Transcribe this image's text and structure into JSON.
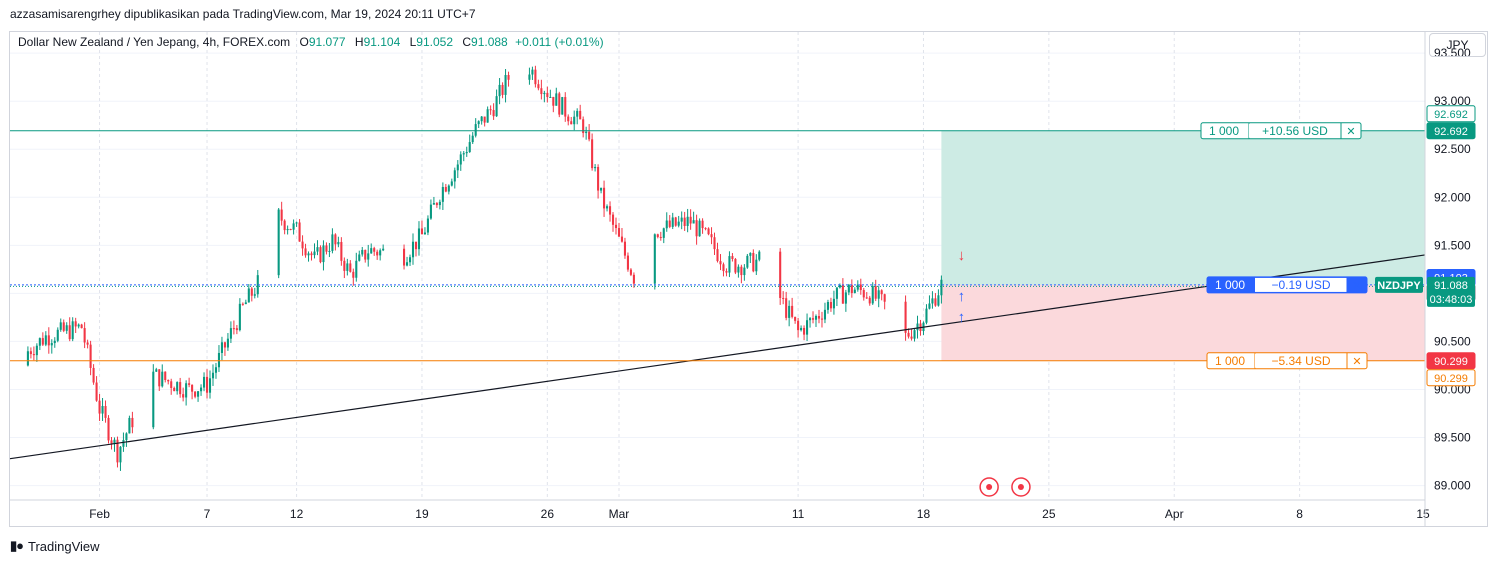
{
  "header": {
    "publisher": "azzasamisarengrhey dipublikasikan pada TradingView.com, Mar 19, 2024 20:11 UTC+7"
  },
  "legend": {
    "symbol": "Dollar New Zealand / Yen Jepang, 4h, FOREX.com",
    "open_key": "O",
    "open": "91.077",
    "high_key": "H",
    "high": "91.104",
    "low_key": "L",
    "low": "91.052",
    "close_key": "C",
    "close": "91.088",
    "change": "+0.011 (+0.01%)"
  },
  "currency": "JPY",
  "footer": {
    "brand": "TradingView",
    "logo": "tradingview-logo-icon"
  },
  "colors": {
    "up": "#089981",
    "down": "#f23645",
    "target": "#089981",
    "stop": "#f57c00",
    "profit_zone": "#cdebe4",
    "loss_zone": "#fbd9dc",
    "trendline": "#131722",
    "entry": "#2962ff"
  },
  "chart_data": {
    "type": "candlestick",
    "symbol": "NZDJPY",
    "timeframe": "4h",
    "ylim": [
      88.85,
      93.72
    ],
    "y_ticks": [
      "89.000",
      "89.500",
      "90.000",
      "90.500",
      "91.000",
      "91.500",
      "92.000",
      "92.500",
      "93.000",
      "93.500"
    ],
    "x_ticks": [
      "Feb",
      "7",
      "12",
      "19",
      "26",
      "Mar",
      "11",
      "18",
      "25",
      "Apr",
      "8",
      "15"
    ],
    "x_tick_dates": [
      "2024-02-01",
      "2024-02-07",
      "2024-02-12",
      "2024-02-19",
      "2024-02-26",
      "2024-03-01",
      "2024-03-11",
      "2024-03-18",
      "2024-03-25",
      "2024-04-01",
      "2024-04-08",
      "2024-04-15"
    ],
    "anchors": [
      {
        "date": "2024-01-27",
        "close": 90.25
      },
      {
        "date": "2024-01-29",
        "close": 90.55
      },
      {
        "date": "2024-01-31",
        "close": 90.65
      },
      {
        "date": "2024-02-01",
        "close": 89.8
      },
      {
        "date": "2024-02-02",
        "close": 89.35
      },
      {
        "date": "2024-02-04",
        "close": 90.15
      },
      {
        "date": "2024-02-06",
        "close": 90.0
      },
      {
        "date": "2024-02-07",
        "close": 90.05
      },
      {
        "date": "2024-02-08",
        "close": 90.45
      },
      {
        "date": "2024-02-09",
        "close": 90.85
      },
      {
        "date": "2024-02-10",
        "close": 91.15
      },
      {
        "date": "2024-02-11",
        "close": 91.8
      },
      {
        "date": "2024-02-12",
        "close": 91.65
      },
      {
        "date": "2024-02-13",
        "close": 91.35
      },
      {
        "date": "2024-02-14",
        "close": 91.55
      },
      {
        "date": "2024-02-15",
        "close": 91.2
      },
      {
        "date": "2024-02-16",
        "close": 91.45
      },
      {
        "date": "2024-02-18",
        "close": 91.4
      },
      {
        "date": "2024-02-19",
        "close": 91.6
      },
      {
        "date": "2024-02-20",
        "close": 92.05
      },
      {
        "date": "2024-02-21",
        "close": 92.35
      },
      {
        "date": "2024-02-22",
        "close": 92.7
      },
      {
        "date": "2024-02-23",
        "close": 92.95
      },
      {
        "date": "2024-02-24",
        "close": 93.3
      },
      {
        "date": "2024-02-25",
        "close": 93.35
      },
      {
        "date": "2024-02-26",
        "close": 93.1
      },
      {
        "date": "2024-02-27",
        "close": 92.9
      },
      {
        "date": "2024-02-28",
        "close": 92.75
      },
      {
        "date": "2024-02-29",
        "close": 92.0
      },
      {
        "date": "2024-03-01",
        "close": 91.55
      },
      {
        "date": "2024-03-02",
        "close": 91.1
      },
      {
        "date": "2024-03-03",
        "close": 91.65
      },
      {
        "date": "2024-03-05",
        "close": 91.75
      },
      {
        "date": "2024-03-06",
        "close": 91.55
      },
      {
        "date": "2024-03-07",
        "close": 91.3
      },
      {
        "date": "2024-03-08",
        "close": 91.3
      },
      {
        "date": "2024-03-09",
        "close": 91.35
      },
      {
        "date": "2024-03-10",
        "close": 90.95
      },
      {
        "date": "2024-03-11",
        "close": 90.6
      },
      {
        "date": "2024-03-12",
        "close": 90.75
      },
      {
        "date": "2024-03-13",
        "close": 90.95
      },
      {
        "date": "2024-03-14",
        "close": 91.05
      },
      {
        "date": "2024-03-15",
        "close": 91.0
      },
      {
        "date": "2024-03-16",
        "close": 90.85
      },
      {
        "date": "2024-03-17",
        "close": 90.55
      },
      {
        "date": "2024-03-18",
        "close": 90.75
      },
      {
        "date": "2024-03-19",
        "close": 91.09
      }
    ],
    "levels": {
      "target": {
        "price": 92.692,
        "label": "92.692",
        "qty": "1 000",
        "pnl": "+10.56 USD"
      },
      "entry": {
        "price": 91.088,
        "label": "91.088",
        "qty": "1 000",
        "pnl": "−0.19 USD",
        "countdown": "03:48:03"
      },
      "stop": {
        "price": 90.299,
        "label": "90.299",
        "qty": "1 000",
        "pnl": "−5.34 USD"
      },
      "high_label": {
        "price": 91.103,
        "label": "91.103"
      },
      "prev_label": {
        "price": 91.092,
        "label": "91.092"
      },
      "close_symbol": "NZDJPY"
    },
    "trendline": {
      "from": {
        "date": "2024-01-27",
        "price": 89.28
      },
      "to": {
        "date": "2024-04-15",
        "price": 91.4
      }
    },
    "grid": true,
    "legend_position": "top-left"
  }
}
